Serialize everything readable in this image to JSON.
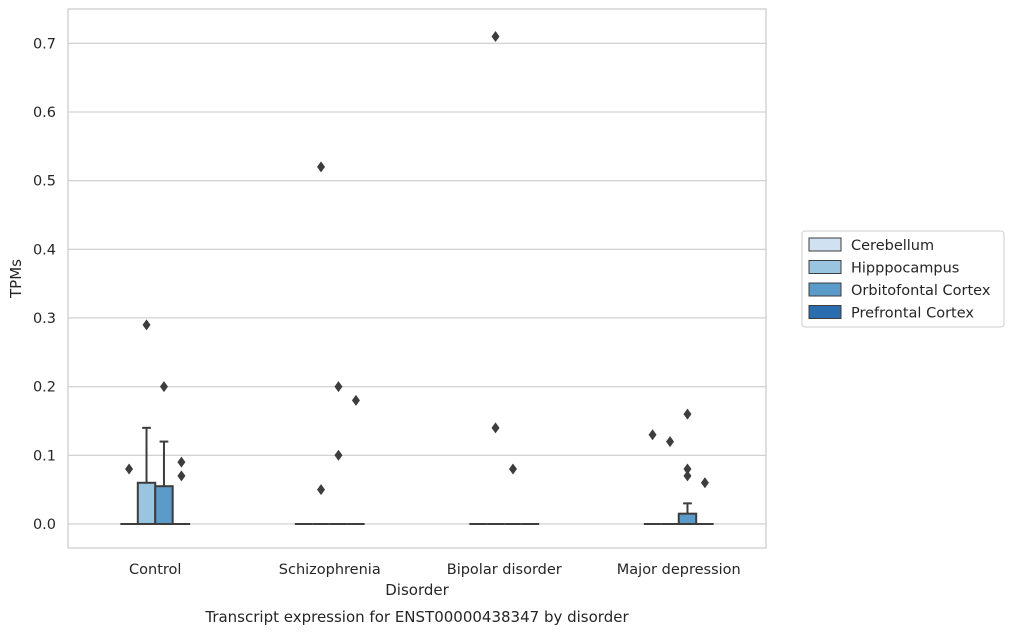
{
  "chart_data": {
    "type": "box",
    "title": "Transcript expression for ENST00000438347 by disorder",
    "xlabel": "Disorder",
    "ylabel": "TPMs",
    "categories": [
      "Control",
      "Schizophrenia",
      "Bipolar disorder",
      "Major depression"
    ],
    "ylim": [
      -0.035,
      0.75
    ],
    "yticks": [
      0.0,
      0.1,
      0.2,
      0.3,
      0.4,
      0.5,
      0.6,
      0.7
    ],
    "ytick_labels": [
      "0.0",
      "0.1",
      "0.2",
      "0.3",
      "0.4",
      "0.5",
      "0.6",
      "0.7"
    ],
    "grid": "horizontal",
    "legend_position": "right",
    "series": [
      {
        "name": "Cerebellum",
        "color": "#d0e1f2",
        "boxes": [
          {
            "q1": 0,
            "median": 0,
            "q3": 0,
            "whisker_low": 0,
            "whisker_high": 0,
            "outliers": [
              0.08
            ]
          },
          {
            "q1": 0,
            "median": 0,
            "q3": 0,
            "whisker_low": 0,
            "whisker_high": 0,
            "outliers": []
          },
          {
            "q1": 0,
            "median": 0,
            "q3": 0,
            "whisker_low": 0,
            "whisker_high": 0,
            "outliers": []
          },
          {
            "q1": 0,
            "median": 0,
            "q3": 0,
            "whisker_low": 0,
            "whisker_high": 0,
            "outliers": [
              0.13
            ]
          }
        ]
      },
      {
        "name": "Hipppocampus",
        "color": "#9ac5e0",
        "boxes": [
          {
            "q1": 0,
            "median": 0,
            "q3": 0.06,
            "whisker_low": 0,
            "whisker_high": 0.14,
            "outliers": [
              0.29
            ]
          },
          {
            "q1": 0,
            "median": 0,
            "q3": 0,
            "whisker_low": 0,
            "whisker_high": 0,
            "outliers": [
              0.52,
              0.05
            ]
          },
          {
            "q1": 0,
            "median": 0,
            "q3": 0,
            "whisker_low": 0,
            "whisker_high": 0,
            "outliers": [
              0.71,
              0.14
            ]
          },
          {
            "q1": 0,
            "median": 0,
            "q3": 0,
            "whisker_low": 0,
            "whisker_high": 0,
            "outliers": [
              0.12
            ]
          }
        ]
      },
      {
        "name": "Orbitofontal Cortex",
        "color": "#5b9bc9",
        "boxes": [
          {
            "q1": 0,
            "median": 0,
            "q3": 0.055,
            "whisker_low": 0,
            "whisker_high": 0.12,
            "outliers": [
              0.2
            ]
          },
          {
            "q1": 0,
            "median": 0,
            "q3": 0,
            "whisker_low": 0,
            "whisker_high": 0,
            "outliers": [
              0.2,
              0.1
            ]
          },
          {
            "q1": 0,
            "median": 0,
            "q3": 0,
            "whisker_low": 0,
            "whisker_high": 0,
            "outliers": [
              0.08
            ]
          },
          {
            "q1": 0,
            "median": 0,
            "q3": 0.015,
            "whisker_low": 0,
            "whisker_high": 0.03,
            "outliers": [
              0.16,
              0.08,
              0.07
            ]
          }
        ]
      },
      {
        "name": "Prefrontal Cortex",
        "color": "#2b6eb0",
        "boxes": [
          {
            "q1": 0,
            "median": 0,
            "q3": 0,
            "whisker_low": 0,
            "whisker_high": 0,
            "outliers": [
              0.09,
              0.07
            ]
          },
          {
            "q1": 0,
            "median": 0,
            "q3": 0,
            "whisker_low": 0,
            "whisker_high": 0,
            "outliers": [
              0.18
            ]
          },
          {
            "q1": 0,
            "median": 0,
            "q3": 0,
            "whisker_low": 0,
            "whisker_high": 0,
            "outliers": []
          },
          {
            "q1": 0,
            "median": 0,
            "q3": 0,
            "whisker_low": 0,
            "whisker_high": 0,
            "outliers": [
              0.06
            ]
          }
        ]
      }
    ]
  }
}
